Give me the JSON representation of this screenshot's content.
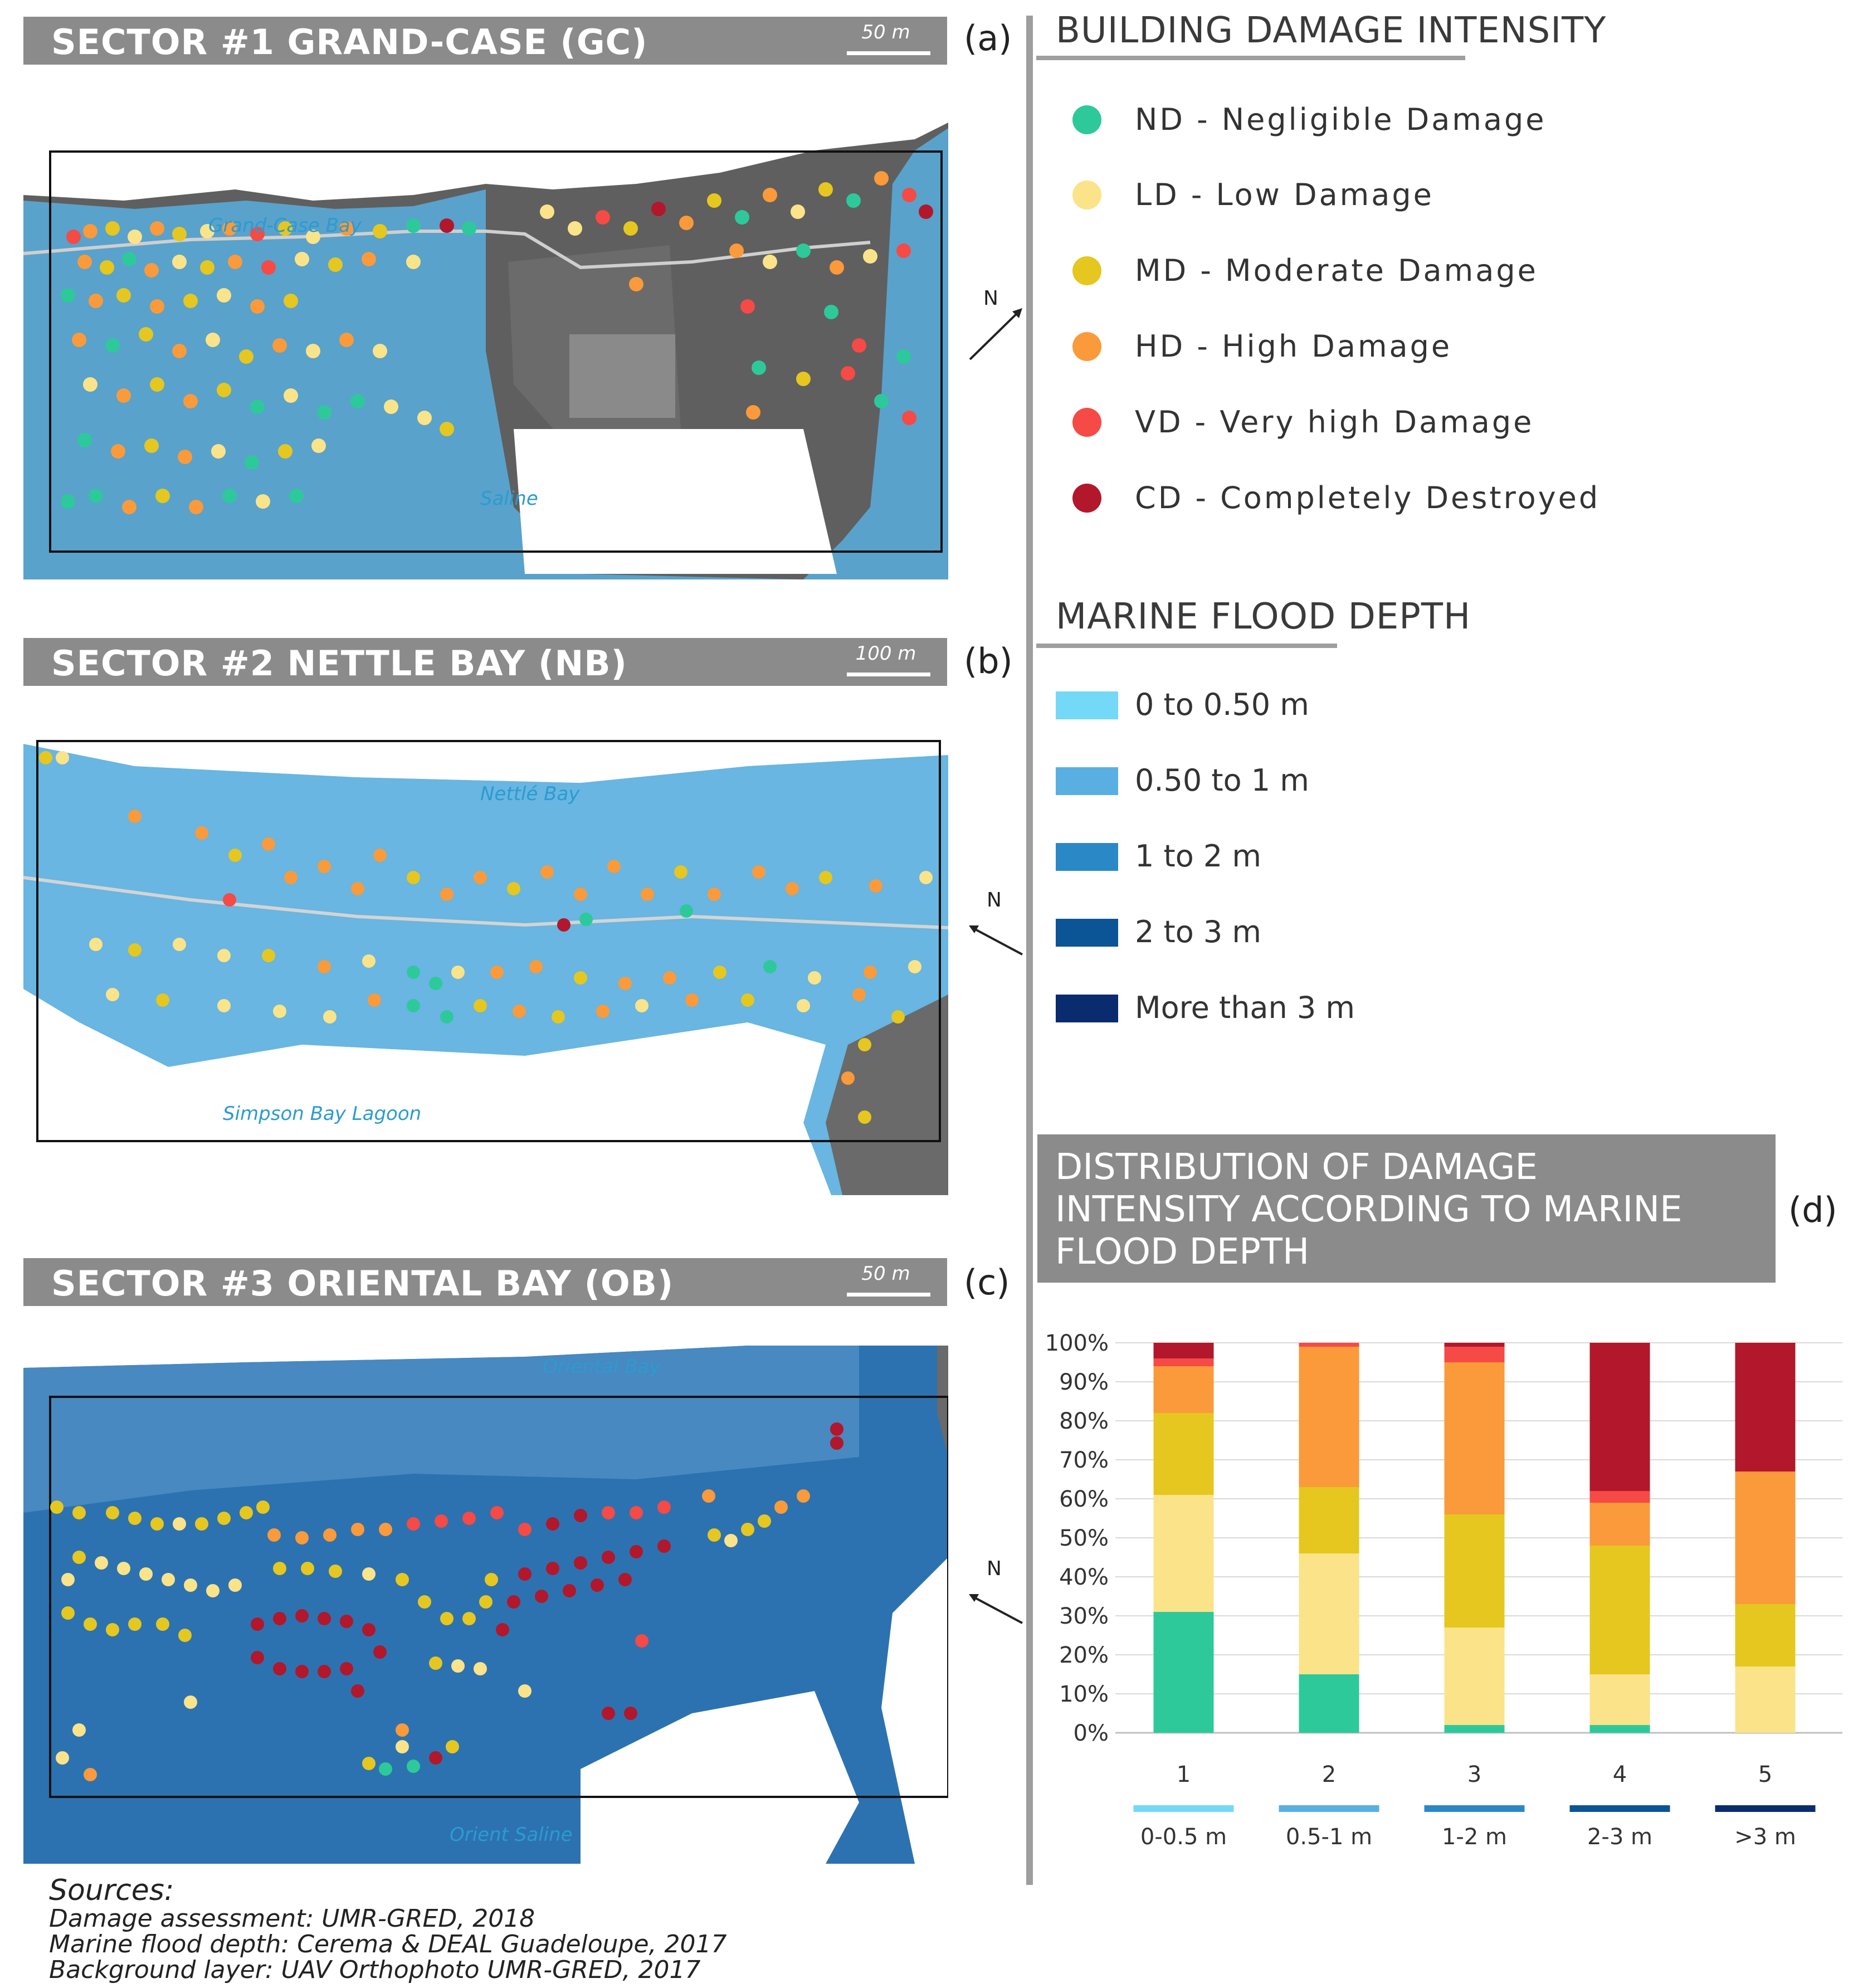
{
  "sectors": [
    {
      "title": "SECTOR #1 GRAND-CASE (GC)",
      "scale": "50 m",
      "letter": "(a)",
      "places": [
        "Grand-Case Bay",
        "Saline"
      ]
    },
    {
      "title": "SECTOR #2 NETTLE BAY (NB)",
      "scale": "100 m",
      "letter": "(b)",
      "places": [
        "Nettlé Bay",
        "Simpson Bay Lagoon"
      ]
    },
    {
      "title": "SECTOR #3 ORIENTAL BAY (OB)",
      "scale": "50 m",
      "letter": "(c)",
      "places": [
        "Oriental Bay",
        "Orient Saline"
      ]
    }
  ],
  "north_label": "N",
  "damage_legend": {
    "title": "BUILDING DAMAGE INTENSITY",
    "items": [
      {
        "label": "ND - Negligible Damage",
        "color": "#2ec99a"
      },
      {
        "label": "LD - Low Damage",
        "color": "#fbe38a"
      },
      {
        "label": "MD - Moderate Damage",
        "color": "#e5c71f"
      },
      {
        "label": "HD - High Damage",
        "color": "#fa9a3a"
      },
      {
        "label": "VD - Very high Damage",
        "color": "#f54a45"
      },
      {
        "label": "CD - Completely Destroyed",
        "color": "#b2172b"
      }
    ]
  },
  "flood_legend": {
    "title": "MARINE FLOOD DEPTH",
    "items": [
      {
        "label": "0 to 0.50 m",
        "color": "#74d8f7"
      },
      {
        "label": "0.50 to 1 m",
        "color": "#5aafe2"
      },
      {
        "label": "1 to 2 m",
        "color": "#2b88c7"
      },
      {
        "label": "2 to 3 m",
        "color": "#0b5496"
      },
      {
        "label": "More than 3 m",
        "color": "#0a2b6e"
      }
    ]
  },
  "distribution": {
    "title_lines": [
      "DISTRIBUTION OF DAMAGE",
      "INTENSITY ACCORDING TO MARINE",
      "FLOOD DEPTH"
    ],
    "letter": "(d)"
  },
  "chart_data": {
    "type": "bar",
    "stacked": true,
    "categories": [
      "1",
      "2",
      "3",
      "4",
      "5"
    ],
    "category_sublabels": [
      "0-0.5 m",
      "0.5-1 m",
      "1-2 m",
      "2-3 m",
      ">3 m"
    ],
    "category_colors": [
      "#74d8f7",
      "#5aafe2",
      "#2b88c7",
      "#0b5496",
      "#0a2b6e"
    ],
    "y_ticks": [
      "0%",
      "10%",
      "20%",
      "30%",
      "40%",
      "50%",
      "60%",
      "70%",
      "80%",
      "90%",
      "100%"
    ],
    "ylim": [
      0,
      100
    ],
    "grid": true,
    "series": [
      {
        "name": "ND - Negligible Damage",
        "color": "#2ec99a",
        "values": [
          31,
          15,
          2,
          2,
          0
        ]
      },
      {
        "name": "LD - Low Damage",
        "color": "#fbe38a",
        "values": [
          30,
          31,
          25,
          13,
          17
        ]
      },
      {
        "name": "MD - Moderate Damage",
        "color": "#e5c71f",
        "values": [
          21,
          17,
          29,
          33,
          16
        ]
      },
      {
        "name": "HD - High Damage",
        "color": "#fa9a3a",
        "values": [
          12,
          36,
          39,
          11,
          34
        ]
      },
      {
        "name": "VD - Very high Damage",
        "color": "#f54a45",
        "values": [
          2,
          1,
          4,
          3,
          0
        ]
      },
      {
        "name": "CD - Completely Destroyed",
        "color": "#b2172b",
        "values": [
          4,
          0,
          1,
          38,
          33
        ]
      }
    ]
  },
  "sources": {
    "heading": "Sources:",
    "lines": [
      "Damage assessment: UMR-GRED, 2018",
      "Marine flood depth: Cerema & DEAL Guadeloupe, 2017",
      "Background layer: UAV Orthophoto UMR-GRED, 2017"
    ]
  }
}
